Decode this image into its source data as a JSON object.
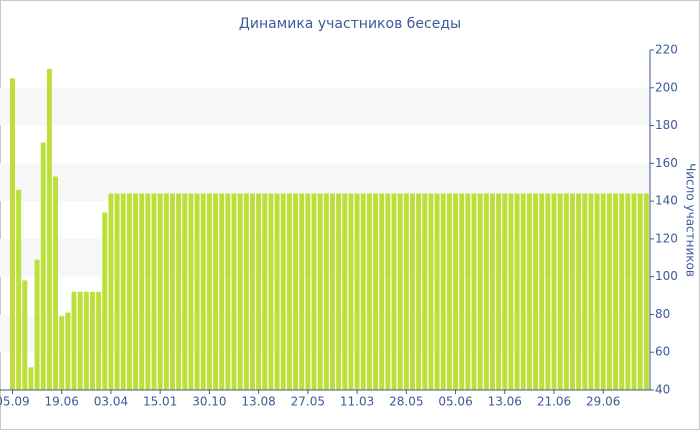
{
  "chart_data": {
    "type": "bar",
    "title": "Динамика участников беседы",
    "y_label": "Число участников",
    "color": "#bcdf3a",
    "categories": [
      "05.09",
      null,
      null,
      null,
      null,
      null,
      null,
      null,
      "19.06",
      null,
      null,
      null,
      null,
      null,
      null,
      null,
      "03.04",
      null,
      null,
      null,
      null,
      null,
      null,
      null,
      "15.01",
      null,
      null,
      null,
      null,
      null,
      null,
      null,
      "30.10",
      null,
      null,
      null,
      null,
      null,
      null,
      null,
      "13.08",
      null,
      null,
      null,
      null,
      null,
      null,
      null,
      "27.05",
      null,
      null,
      null,
      null,
      null,
      null,
      null,
      "11.03",
      null,
      null,
      null,
      null,
      null,
      null,
      null,
      "28.05",
      null,
      null,
      null,
      null,
      null,
      null,
      null,
      "05.06",
      null,
      null,
      null,
      null,
      null,
      null,
      null,
      "13.06",
      null,
      null,
      null,
      null,
      null,
      null,
      null,
      "21.06",
      null,
      null,
      null,
      null,
      null,
      null,
      null,
      "29.06",
      null,
      null,
      null,
      null,
      null,
      null,
      null
    ],
    "values": [
      205,
      146,
      98,
      52,
      109,
      171,
      210,
      153,
      79,
      81,
      92,
      92,
      92,
      92,
      92,
      134,
      144,
      144,
      144,
      144,
      144,
      144,
      144,
      144,
      144,
      144,
      144,
      144,
      144,
      144,
      144,
      144,
      144,
      144,
      144,
      144,
      144,
      144,
      144,
      144,
      144,
      144,
      144,
      144,
      144,
      144,
      144,
      144,
      144,
      144,
      144,
      144,
      144,
      144,
      144,
      144,
      144,
      144,
      144,
      144,
      144,
      144,
      144,
      144,
      144,
      144,
      144,
      144,
      144,
      144,
      144,
      144,
      144,
      144,
      144,
      144,
      144,
      144,
      144,
      144,
      144,
      144,
      144,
      144,
      144,
      144,
      144,
      144,
      144,
      144,
      144,
      144,
      144,
      144,
      144,
      144,
      144,
      144,
      144,
      144,
      144,
      144,
      144,
      144
    ],
    "ylim": [
      40,
      220
    ],
    "yticks": [
      40,
      60,
      80,
      100,
      120,
      140,
      160,
      180,
      200,
      220
    ],
    "grid": true
  }
}
